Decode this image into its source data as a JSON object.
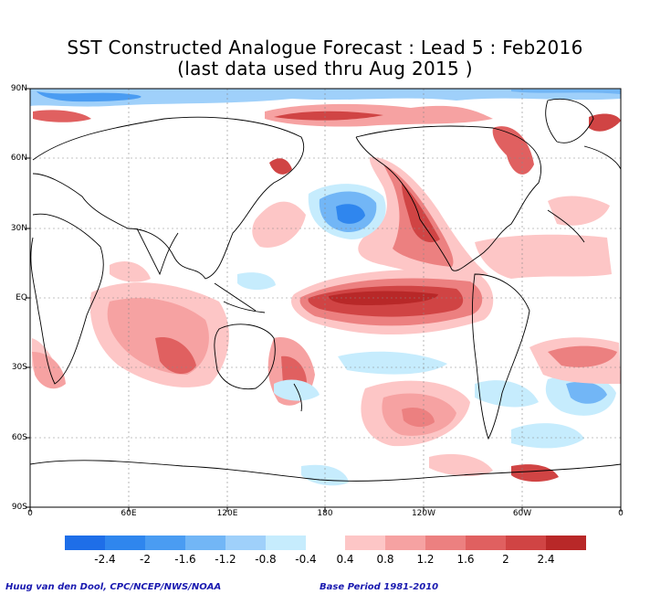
{
  "title_line1": "SST Constructed Analogue Forecast : Lead 5 : Feb2016",
  "title_line2": "(last data used thru Aug 2015 )",
  "lat_labels": [
    "90N",
    "60N",
    "30N",
    "EQ",
    "30S",
    "60S",
    "90S"
  ],
  "lon_labels": [
    "0",
    "60E",
    "120E",
    "180",
    "120W",
    "60W",
    "0"
  ],
  "legend": {
    "negative_labels": [
      "-2.4",
      "-2",
      "-1.6",
      "-1.2",
      "-0.8",
      "-0.4"
    ],
    "positive_labels": [
      "0.4",
      "0.8",
      "1.2",
      "1.6",
      "2",
      "2.4"
    ],
    "negative_colors": [
      "#1e6ee8",
      "#2f86ee",
      "#4a9cf2",
      "#72b6f6",
      "#9fd0fa",
      "#c6ecfd"
    ],
    "positive_colors": [
      "#fdc6c6",
      "#f6a2a2",
      "#ec8080",
      "#e06060",
      "#d04444",
      "#b82828"
    ]
  },
  "credit_left": "Huug van den Dool, CPC/NCEP/NWS/NOAA",
  "credit_right": "Base Period 1981-2010"
}
